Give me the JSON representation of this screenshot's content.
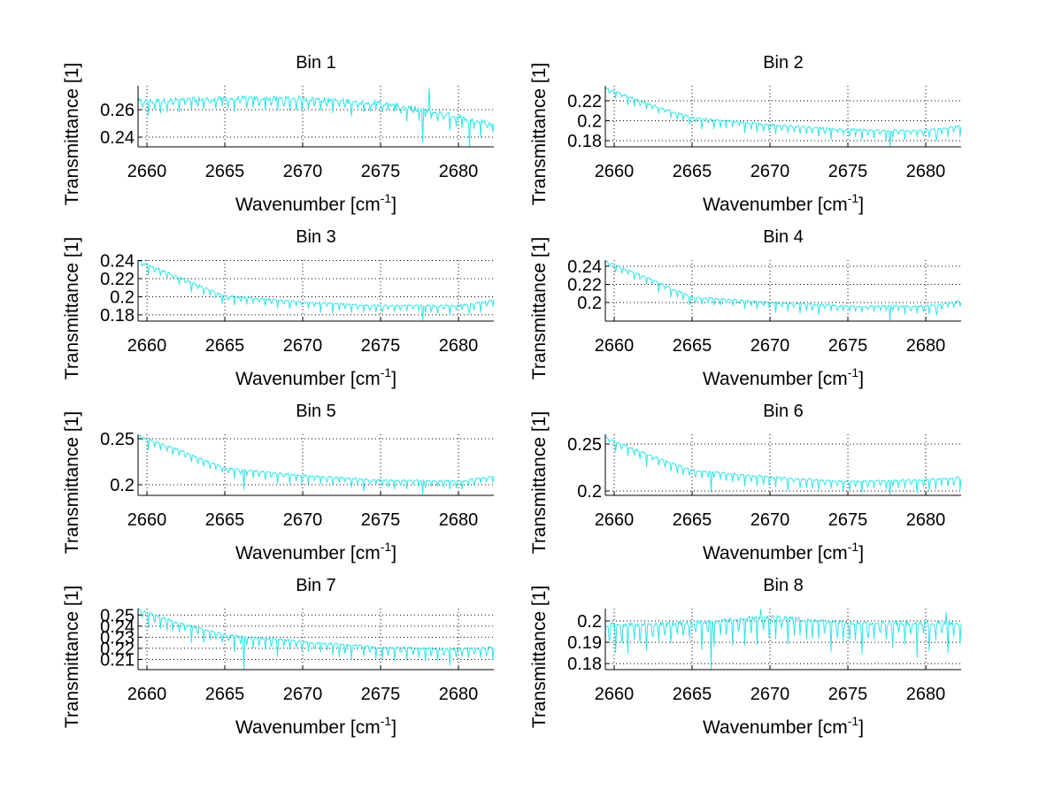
{
  "figure": {
    "background": "#ffffff",
    "line_color": "#00ffff"
  },
  "chart_data": [
    {
      "type": "line",
      "title": "Bin 1",
      "xlabel": "Wavenumber [cm^-1]",
      "ylabel": "Transmittance [1]",
      "xlim": [
        2659.43,
        2682.27
      ],
      "ylim": [
        0.2329,
        0.2774
      ],
      "xticks": [
        2660,
        2665,
        2670,
        2675,
        2680
      ],
      "xtick_labels": [
        "2660",
        "2665",
        "2670",
        "2675",
        "2680"
      ],
      "yticks": [
        0.24,
        0.26
      ],
      "ytick_labels": [
        "0.24",
        "0.26"
      ],
      "grid": true,
      "series": [
        {
          "name": "Bin 1",
          "trend": [
            [
              2659.5,
              0.266
            ],
            [
              2665,
              0.268
            ],
            [
              2670,
              0.268
            ],
            [
              2675,
              0.265
            ],
            [
              2680,
              0.255
            ],
            [
              2682.2,
              0.249
            ]
          ],
          "dip_depth": 0.01,
          "noise": 0.004,
          "spikes": [
            [
              2677.7,
              0.236
            ],
            [
              2678.1,
              0.276
            ],
            [
              2680.7,
              0.233
            ]
          ]
        }
      ]
    },
    {
      "type": "line",
      "title": "Bin 2",
      "xlabel": "Wavenumber [cm^-1]",
      "ylabel": "Transmittance [1]",
      "xlim": [
        2659.43,
        2682.27
      ],
      "ylim": [
        0.1738,
        0.2351
      ],
      "xticks": [
        2660,
        2665,
        2670,
        2675,
        2680
      ],
      "xtick_labels": [
        "2660",
        "2665",
        "2670",
        "2675",
        "2680"
      ],
      "yticks": [
        0.18,
        0.2,
        0.22
      ],
      "ytick_labels": [
        "0.18",
        "0.2",
        "0.22"
      ],
      "grid": true,
      "series": [
        {
          "name": "Bin 2",
          "trend": [
            [
              2659.5,
              0.233
            ],
            [
              2662,
              0.218
            ],
            [
              2665,
              0.203
            ],
            [
              2670,
              0.196
            ],
            [
              2675,
              0.191
            ],
            [
              2680,
              0.19
            ],
            [
              2682.2,
              0.195
            ]
          ],
          "dip_depth": 0.01,
          "noise": 0.002,
          "spikes": [
            [
              2677.7,
              0.174
            ],
            [
              2680.7,
              0.18
            ]
          ]
        }
      ]
    },
    {
      "type": "line",
      "title": "Bin 3",
      "xlabel": "Wavenumber [cm^-1]",
      "ylabel": "Transmittance [1]",
      "xlim": [
        2659.43,
        2682.27
      ],
      "ylim": [
        0.1731,
        0.2405
      ],
      "xticks": [
        2660,
        2665,
        2670,
        2675,
        2680
      ],
      "xtick_labels": [
        "2660",
        "2665",
        "2670",
        "2675",
        "2680"
      ],
      "yticks": [
        0.18,
        0.2,
        0.22,
        0.24
      ],
      "ytick_labels": [
        "0.18",
        "0.2",
        "0.22",
        "0.24"
      ],
      "grid": true,
      "series": [
        {
          "name": "Bin 3",
          "trend": [
            [
              2659.5,
              0.239
            ],
            [
              2662,
              0.222
            ],
            [
              2665,
              0.201
            ],
            [
              2670,
              0.194
            ],
            [
              2675,
              0.19
            ],
            [
              2680,
              0.19
            ],
            [
              2682.2,
              0.196
            ]
          ],
          "dip_depth": 0.01,
          "noise": 0.002,
          "spikes": [
            [
              2677.7,
              0.174
            ],
            [
              2680.7,
              0.181
            ]
          ]
        }
      ]
    },
    {
      "type": "line",
      "title": "Bin 4",
      "xlabel": "Wavenumber [cm^-1]",
      "ylabel": "Transmittance [1]",
      "xlim": [
        2659.43,
        2682.27
      ],
      "ylim": [
        0.1795,
        0.2468
      ],
      "xticks": [
        2660,
        2665,
        2670,
        2675,
        2680
      ],
      "xtick_labels": [
        "2660",
        "2665",
        "2670",
        "2675",
        "2680"
      ],
      "yticks": [
        0.2,
        0.22,
        0.24
      ],
      "ytick_labels": [
        "0.2",
        "0.22",
        "0.24"
      ],
      "grid": true,
      "series": [
        {
          "name": "Bin 4",
          "trend": [
            [
              2659.5,
              0.245
            ],
            [
              2662,
              0.228
            ],
            [
              2665,
              0.206
            ],
            [
              2670,
              0.2
            ],
            [
              2675,
              0.196
            ],
            [
              2680,
              0.196
            ],
            [
              2682.2,
              0.201
            ]
          ],
          "dip_depth": 0.01,
          "noise": 0.002,
          "spikes": [
            [
              2677.7,
              0.18
            ],
            [
              2680.7,
              0.186
            ]
          ]
        }
      ]
    },
    {
      "type": "line",
      "title": "Bin 5",
      "xlabel": "Wavenumber [cm^-1]",
      "ylabel": "Transmittance [1]",
      "xlim": [
        2659.43,
        2682.27
      ],
      "ylim": [
        0.1885,
        0.2548
      ],
      "xticks": [
        2660,
        2665,
        2670,
        2675,
        2680
      ],
      "xtick_labels": [
        "2660",
        "2665",
        "2670",
        "2675",
        "2680"
      ],
      "yticks": [
        0.2,
        0.25
      ],
      "ytick_labels": [
        "0.2",
        "0.25"
      ],
      "grid": true,
      "series": [
        {
          "name": "Bin 5",
          "trend": [
            [
              2659.5,
              0.253
            ],
            [
              2662,
              0.238
            ],
            [
              2665,
              0.218
            ],
            [
              2670,
              0.21
            ],
            [
              2675,
              0.205
            ],
            [
              2680,
              0.204
            ],
            [
              2682.2,
              0.209
            ]
          ],
          "dip_depth": 0.011,
          "noise": 0.002,
          "spikes": [
            [
              2677.7,
              0.19
            ],
            [
              2666.2,
              0.195
            ]
          ]
        }
      ]
    },
    {
      "type": "line",
      "title": "Bin 6",
      "xlabel": "Wavenumber [cm^-1]",
      "ylabel": "Transmittance [1]",
      "xlim": [
        2659.43,
        2682.27
      ],
      "ylim": [
        0.1953,
        0.2604
      ],
      "xticks": [
        2660,
        2665,
        2670,
        2675,
        2680
      ],
      "xtick_labels": [
        "2660",
        "2665",
        "2670",
        "2675",
        "2680"
      ],
      "yticks": [
        0.2,
        0.25
      ],
      "ytick_labels": [
        "0.2",
        "0.25"
      ],
      "grid": true,
      "series": [
        {
          "name": "Bin 6",
          "trend": [
            [
              2659.5,
              0.257
            ],
            [
              2662,
              0.24
            ],
            [
              2665,
              0.222
            ],
            [
              2670,
              0.215
            ],
            [
              2675,
              0.21
            ],
            [
              2680,
              0.212
            ],
            [
              2682.2,
              0.214
            ]
          ],
          "dip_depth": 0.013,
          "noise": 0.002,
          "spikes": [
            [
              2677.7,
              0.196
            ],
            [
              2666.2,
              0.199
            ]
          ]
        }
      ]
    },
    {
      "type": "line",
      "title": "Bin 7",
      "xlabel": "Wavenumber [cm^-1]",
      "ylabel": "Transmittance [1]",
      "xlim": [
        2659.43,
        2682.27
      ],
      "ylim": [
        0.2008,
        0.2558
      ],
      "xticks": [
        2660,
        2665,
        2670,
        2675,
        2680
      ],
      "xtick_labels": [
        "2660",
        "2665",
        "2670",
        "2675",
        "2680"
      ],
      "yticks": [
        0.21,
        0.22,
        0.23,
        0.24,
        0.25
      ],
      "ytick_labels": [
        "0.21",
        "0.22",
        "0.23",
        "0.24",
        "0.25"
      ],
      "grid": true,
      "series": [
        {
          "name": "Bin 7",
          "trend": [
            [
              2659.5,
              0.255
            ],
            [
              2662,
              0.243
            ],
            [
              2665,
              0.232
            ],
            [
              2670,
              0.226
            ],
            [
              2675,
              0.221
            ],
            [
              2680,
              0.219
            ],
            [
              2682.2,
              0.221
            ]
          ],
          "dip_depth": 0.013,
          "noise": 0.002,
          "spikes": [
            [
              2666.2,
              0.201
            ]
          ]
        }
      ]
    },
    {
      "type": "line",
      "title": "Bin 8",
      "xlabel": "Wavenumber [cm^-1]",
      "ylabel": "Transmittance [1]",
      "xlim": [
        2659.43,
        2682.27
      ],
      "ylim": [
        0.1772,
        0.2058
      ],
      "xticks": [
        2660,
        2665,
        2670,
        2675,
        2680
      ],
      "xtick_labels": [
        "2660",
        "2665",
        "2670",
        "2675",
        "2680"
      ],
      "yticks": [
        0.18,
        0.19,
        0.2
      ],
      "ytick_labels": [
        "0.18",
        "0.19",
        "0.2"
      ],
      "grid": true,
      "series": [
        {
          "name": "Bin 8",
          "trend": [
            [
              2659.5,
              0.198
            ],
            [
              2665,
              0.199
            ],
            [
              2670,
              0.202
            ],
            [
              2675,
              0.199
            ],
            [
              2680,
              0.199
            ],
            [
              2682.2,
              0.199
            ]
          ],
          "dip_depth": 0.014,
          "noise": 0.002,
          "spikes": [
            [
              2666.2,
              0.1775
            ],
            [
              2669.4,
              0.2055
            ],
            [
              2681.3,
              0.204
            ]
          ]
        }
      ]
    }
  ]
}
